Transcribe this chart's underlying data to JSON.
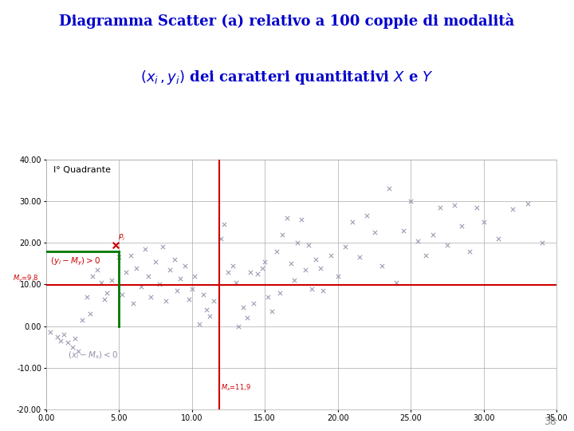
{
  "title_line1": "Diagramma Scatter (a) relativo a 100 coppie di modalità",
  "title_line2": "$(x_i\\,, y_i)$ dei caratteri quantitativi $X$ e $Y$",
  "xlim": [
    0.0,
    35.0
  ],
  "ylim": [
    -20.0,
    40.0
  ],
  "xticks": [
    0.0,
    5.0,
    10.0,
    15.0,
    20.0,
    25.0,
    30.0,
    35.0
  ],
  "yticks": [
    -20.0,
    -10.0,
    0.0,
    10.0,
    20.0,
    30.0,
    40.0
  ],
  "My": 9.8,
  "Mx": 11.9,
  "green_rect_x2": 5.0,
  "green_rect_y2": 18.0,
  "quadrant_label": "I° Quadrante",
  "label_yi": "$(y_i - M_y) > 0$",
  "label_xi": "$(x_i - M_x) < 0$",
  "label_My": "$M_y$=9,8",
  "label_Mx": "$M_x$=11,9",
  "label_Pi": "$P_i$",
  "Pi_x": 4.8,
  "Pi_y": 19.5,
  "page_number": "38",
  "scatter_color": "#9090aa",
  "title_color": "#0000cc",
  "red_line_color": "#cc0000",
  "green_rect_color": "#007700",
  "background_color": "#ffffff",
  "points": [
    [
      0.3,
      -1.5
    ],
    [
      0.8,
      -2.5
    ],
    [
      1.0,
      -3.5
    ],
    [
      1.2,
      -2.0
    ],
    [
      1.5,
      -4.0
    ],
    [
      1.8,
      -5.0
    ],
    [
      2.0,
      -3.0
    ],
    [
      2.2,
      -6.0
    ],
    [
      2.5,
      1.5
    ],
    [
      2.8,
      7.0
    ],
    [
      3.0,
      3.0
    ],
    [
      3.2,
      12.0
    ],
    [
      3.5,
      13.5
    ],
    [
      3.8,
      10.5
    ],
    [
      4.0,
      6.5
    ],
    [
      4.2,
      8.0
    ],
    [
      4.5,
      11.0
    ],
    [
      4.8,
      19.5
    ],
    [
      5.0,
      16.5
    ],
    [
      5.2,
      7.5
    ],
    [
      5.5,
      13.0
    ],
    [
      5.8,
      17.0
    ],
    [
      6.0,
      5.5
    ],
    [
      6.2,
      14.0
    ],
    [
      6.5,
      9.5
    ],
    [
      6.8,
      18.5
    ],
    [
      7.0,
      12.0
    ],
    [
      7.2,
      7.0
    ],
    [
      7.5,
      15.5
    ],
    [
      7.8,
      10.0
    ],
    [
      8.0,
      19.0
    ],
    [
      8.2,
      6.0
    ],
    [
      8.5,
      13.5
    ],
    [
      8.8,
      16.0
    ],
    [
      9.0,
      8.5
    ],
    [
      9.2,
      11.5
    ],
    [
      9.5,
      14.5
    ],
    [
      9.8,
      6.5
    ],
    [
      10.0,
      9.0
    ],
    [
      10.2,
      12.0
    ],
    [
      10.5,
      0.5
    ],
    [
      10.8,
      7.5
    ],
    [
      11.0,
      4.0
    ],
    [
      11.2,
      2.5
    ],
    [
      11.5,
      6.0
    ],
    [
      12.0,
      21.0
    ],
    [
      12.2,
      24.5
    ],
    [
      12.5,
      13.0
    ],
    [
      12.8,
      14.5
    ],
    [
      13.0,
      10.5
    ],
    [
      13.2,
      0.0
    ],
    [
      13.5,
      4.5
    ],
    [
      13.8,
      2.0
    ],
    [
      14.0,
      13.0
    ],
    [
      14.2,
      5.5
    ],
    [
      14.5,
      12.5
    ],
    [
      14.8,
      14.0
    ],
    [
      15.0,
      15.5
    ],
    [
      15.2,
      7.0
    ],
    [
      15.5,
      3.5
    ],
    [
      15.8,
      18.0
    ],
    [
      16.0,
      8.0
    ],
    [
      16.2,
      22.0
    ],
    [
      16.5,
      26.0
    ],
    [
      16.8,
      15.0
    ],
    [
      17.0,
      11.0
    ],
    [
      17.2,
      20.0
    ],
    [
      17.5,
      25.5
    ],
    [
      17.8,
      13.5
    ],
    [
      18.0,
      19.5
    ],
    [
      18.2,
      9.0
    ],
    [
      18.5,
      16.0
    ],
    [
      18.8,
      14.0
    ],
    [
      19.0,
      8.5
    ],
    [
      19.5,
      17.0
    ],
    [
      20.0,
      12.0
    ],
    [
      20.5,
      19.0
    ],
    [
      21.0,
      25.0
    ],
    [
      21.5,
      16.5
    ],
    [
      22.0,
      26.5
    ],
    [
      22.5,
      22.5
    ],
    [
      23.0,
      14.5
    ],
    [
      23.5,
      33.0
    ],
    [
      24.0,
      10.5
    ],
    [
      24.5,
      23.0
    ],
    [
      25.0,
      30.0
    ],
    [
      25.5,
      20.5
    ],
    [
      26.0,
      17.0
    ],
    [
      26.5,
      22.0
    ],
    [
      27.0,
      28.5
    ],
    [
      27.5,
      19.5
    ],
    [
      28.0,
      29.0
    ],
    [
      28.5,
      24.0
    ],
    [
      29.0,
      18.0
    ],
    [
      29.5,
      28.5
    ],
    [
      30.0,
      25.0
    ],
    [
      31.0,
      21.0
    ],
    [
      32.0,
      28.0
    ],
    [
      33.0,
      29.5
    ],
    [
      34.0,
      20.0
    ]
  ]
}
